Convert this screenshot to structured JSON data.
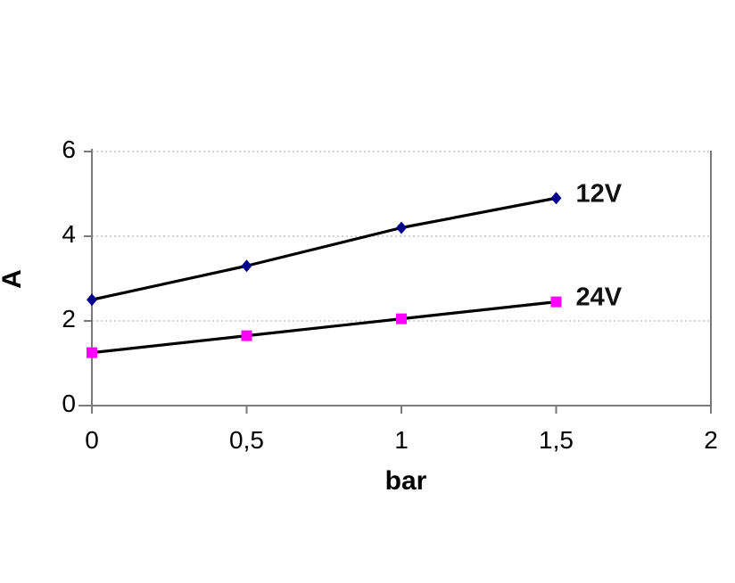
{
  "chart_data": {
    "type": "line",
    "title": "",
    "xlabel": "bar",
    "ylabel": "A",
    "xlim": [
      0,
      2
    ],
    "ylim": [
      0,
      6
    ],
    "x": [
      0,
      0.5,
      1,
      1.5
    ],
    "series": [
      {
        "name": "12V",
        "values": [
          2.5,
          3.3,
          4.2,
          4.9
        ],
        "line_color": "#000000",
        "marker": "diamond",
        "marker_color": "#00008B"
      },
      {
        "name": "24V",
        "values": [
          1.25,
          1.65,
          2.05,
          2.45
        ],
        "line_color": "#000000",
        "marker": "square",
        "marker_color": "#FF00FF"
      }
    ],
    "x_tick_values": [
      0,
      0.5,
      1,
      1.5,
      2
    ],
    "x_tick_labels": [
      "0",
      "0,5",
      "1",
      "1,5",
      "2"
    ],
    "y_tick_values": [
      0,
      2,
      4,
      6
    ],
    "y_tick_labels": [
      "0",
      "2",
      "4",
      "6"
    ],
    "y_gridlines": [
      2,
      4,
      6
    ],
    "grid": "horizontal-dotted",
    "legend_position": "labels-at-line-end",
    "colors": {
      "axis": "#7a7a7a",
      "gridline": "#c4c4c4",
      "text": "#000000",
      "background": "#ffffff"
    }
  }
}
